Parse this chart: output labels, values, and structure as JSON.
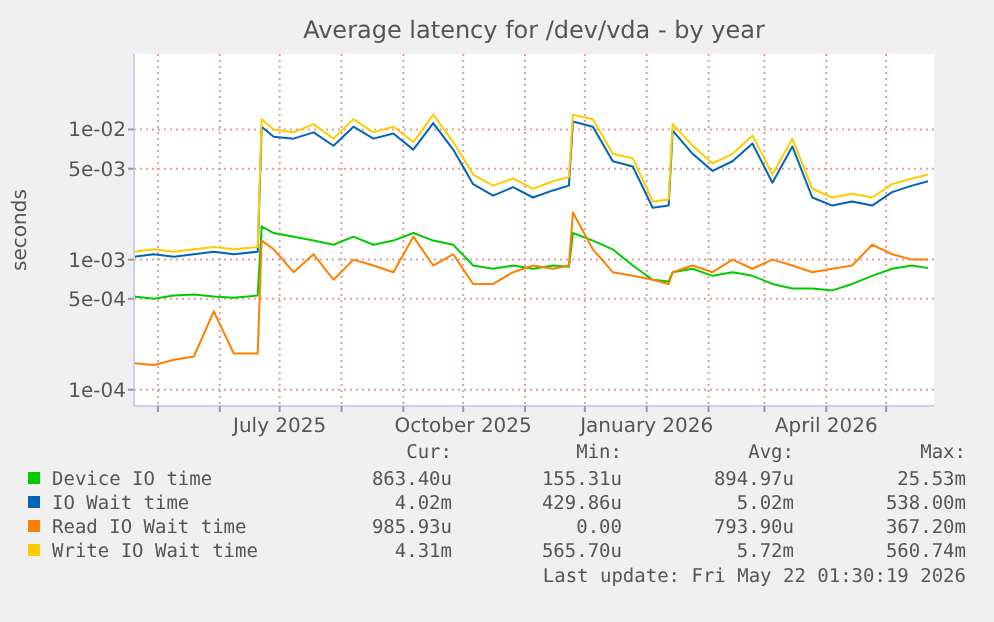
{
  "chart_data": {
    "type": "line",
    "title": "Average latency for /dev/vda - by year",
    "ylabel": "seconds",
    "log": "y",
    "grid": true,
    "legend": "bottom",
    "marker": "none",
    "line_style": "solid",
    "xlim": [
      "2025-04-19",
      "2026-05-25"
    ],
    "xticks": [
      {
        "value": "2025-05-01",
        "label": null
      },
      {
        "value": "2025-06-01",
        "label": null
      },
      {
        "value": "2025-07-01",
        "label": "July 2025"
      },
      {
        "value": "2025-08-01",
        "label": null
      },
      {
        "value": "2025-09-01",
        "label": null
      },
      {
        "value": "2025-10-01",
        "label": "October 2025"
      },
      {
        "value": "2025-11-01",
        "label": null
      },
      {
        "value": "2025-12-01",
        "label": null
      },
      {
        "value": "2026-01-01",
        "label": "January 2026"
      },
      {
        "value": "2026-02-01",
        "label": null
      },
      {
        "value": "2026-03-01",
        "label": null
      },
      {
        "value": "2026-04-01",
        "label": "April 2026"
      },
      {
        "value": "2026-05-01",
        "label": null
      }
    ],
    "ylim": [
      7.5e-05,
      0.038
    ],
    "yticks": [
      {
        "value": 0.0001,
        "label": "1e-04"
      },
      {
        "value": 0.0005,
        "label": "5e-04"
      },
      {
        "value": 0.001,
        "label": "1e-03"
      },
      {
        "value": 0.005,
        "label": "5e-03"
      },
      {
        "value": 0.01,
        "label": "1e-02"
      }
    ],
    "x": [
      "2025-04-19",
      "2025-04-29",
      "2025-05-09",
      "2025-05-19",
      "2025-05-29",
      "2025-06-08",
      "2025-06-20",
      "2025-06-22",
      "2025-06-28",
      "2025-07-08",
      "2025-07-18",
      "2025-07-28",
      "2025-08-07",
      "2025-08-17",
      "2025-08-27",
      "2025-09-06",
      "2025-09-16",
      "2025-09-26",
      "2025-10-06",
      "2025-10-16",
      "2025-10-26",
      "2025-11-05",
      "2025-11-15",
      "2025-11-23",
      "2025-11-25",
      "2025-12-05",
      "2025-12-15",
      "2025-12-25",
      "2026-01-04",
      "2026-01-12",
      "2026-01-14",
      "2026-01-24",
      "2026-02-03",
      "2026-02-13",
      "2026-02-23",
      "2026-03-05",
      "2026-03-15",
      "2026-03-25",
      "2026-04-04",
      "2026-04-14",
      "2026-04-24",
      "2026-05-04",
      "2026-05-14",
      "2026-05-22"
    ],
    "series": [
      {
        "name": "Device IO time",
        "color": "#00cc00",
        "values": [
          0.00052,
          0.0005,
          0.00053,
          0.00054,
          0.00052,
          0.00051,
          0.00053,
          0.0018,
          0.0016,
          0.0015,
          0.0014,
          0.0013,
          0.0015,
          0.0013,
          0.0014,
          0.0016,
          0.0014,
          0.0013,
          0.0009,
          0.00085,
          0.0009,
          0.00085,
          0.0009,
          0.00088,
          0.0016,
          0.0014,
          0.0012,
          0.0009,
          0.0007,
          0.00068,
          0.0008,
          0.00085,
          0.00075,
          0.0008,
          0.00075,
          0.00065,
          0.0006,
          0.0006,
          0.00058,
          0.00065,
          0.00075,
          0.00085,
          0.0009,
          0.00086
        ]
      },
      {
        "name": "IO Wait time",
        "color": "#0066b3",
        "values": [
          0.00105,
          0.0011,
          0.00105,
          0.0011,
          0.00115,
          0.0011,
          0.00115,
          0.0105,
          0.0088,
          0.0085,
          0.0095,
          0.0075,
          0.0105,
          0.0085,
          0.0093,
          0.007,
          0.0112,
          0.007,
          0.0038,
          0.0031,
          0.0036,
          0.003,
          0.0034,
          0.0037,
          0.0115,
          0.0105,
          0.0057,
          0.0052,
          0.0025,
          0.0026,
          0.0098,
          0.0065,
          0.0048,
          0.0057,
          0.0078,
          0.0039,
          0.0074,
          0.003,
          0.0026,
          0.0028,
          0.0026,
          0.0033,
          0.0037,
          0.004
        ]
      },
      {
        "name": "Read IO Wait time",
        "color": "#ff8000",
        "values": [
          0.00016,
          0.000155,
          0.00017,
          0.00018,
          0.0004,
          0.00019,
          0.00019,
          0.0014,
          0.0012,
          0.0008,
          0.0011,
          0.0007,
          0.001,
          0.0009,
          0.0008,
          0.0015,
          0.0009,
          0.0011,
          0.00065,
          0.00065,
          0.0008,
          0.0009,
          0.00085,
          0.0009,
          0.0023,
          0.0012,
          0.0008,
          0.00075,
          0.0007,
          0.00065,
          0.0008,
          0.0009,
          0.0008,
          0.001,
          0.00085,
          0.001,
          0.0009,
          0.0008,
          0.00085,
          0.0009,
          0.0013,
          0.0011,
          0.001,
          0.001
        ]
      },
      {
        "name": "Write IO Wait time",
        "color": "#ffcc00",
        "values": [
          0.00115,
          0.0012,
          0.00115,
          0.0012,
          0.00125,
          0.0012,
          0.00125,
          0.012,
          0.01,
          0.0095,
          0.011,
          0.0085,
          0.012,
          0.0095,
          0.0105,
          0.008,
          0.013,
          0.008,
          0.0045,
          0.0037,
          0.0042,
          0.0035,
          0.004,
          0.0043,
          0.013,
          0.012,
          0.0065,
          0.006,
          0.0028,
          0.0029,
          0.011,
          0.0075,
          0.0055,
          0.0065,
          0.009,
          0.0045,
          0.0085,
          0.0035,
          0.003,
          0.0032,
          0.003,
          0.0038,
          0.0042,
          0.0045
        ]
      }
    ],
    "annotations": [
      "Cur:",
      "Min:",
      "Avg:",
      "Max:",
      "863.40u",
      "155.31u",
      "894.97u",
      "25.53m",
      "4.02m",
      "429.86u",
      "5.02m",
      "538.00m",
      "985.93u",
      "0.00",
      "793.90u",
      "367.20m",
      "4.31m",
      "565.70u",
      "5.72m",
      "560.74m",
      "Last update: Fri May 22 01:30:19 2026"
    ]
  }
}
